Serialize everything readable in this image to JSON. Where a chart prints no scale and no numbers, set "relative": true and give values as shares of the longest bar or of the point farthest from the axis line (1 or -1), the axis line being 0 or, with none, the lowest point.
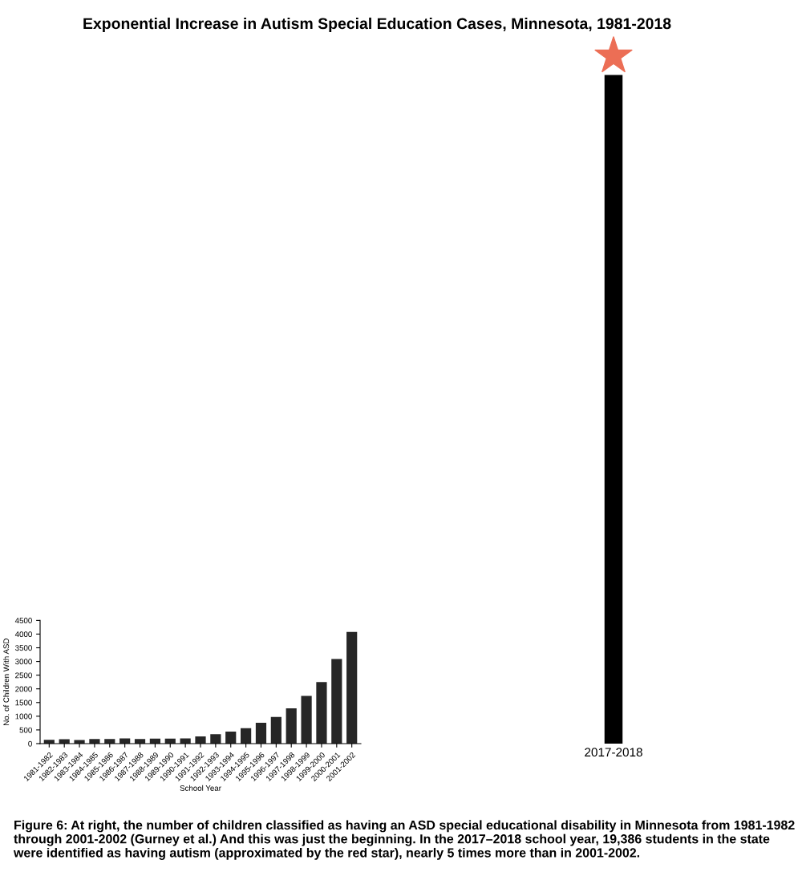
{
  "chart_data": [
    {
      "type": "bar",
      "title": "Exponential Increase in Autism Special Education Cases, Minnesota, 1981-2018",
      "xlabel": "School Year",
      "ylabel": "No. of Children With ASD",
      "categories": [
        "1981-1982",
        "1982-1983",
        "1983-1984",
        "1984-1985",
        "1985-1986",
        "1986-1987",
        "1987-1988",
        "1988-1989",
        "1989-1990",
        "1990-1991",
        "1991-1992",
        "1992-1993",
        "1993-1994",
        "1994-1995",
        "1995-1996",
        "1996-1997",
        "1997-1998",
        "1998-1999",
        "1999-2000",
        "2000-2001",
        "2001-2002"
      ],
      "values": [
        140,
        160,
        130,
        170,
        170,
        190,
        170,
        180,
        180,
        190,
        260,
        340,
        440,
        560,
        760,
        970,
        1290,
        1740,
        2250,
        3090,
        4080
      ],
      "color": "#262626",
      "ylim": [
        0,
        4500
      ],
      "yticks": [
        0,
        500,
        1000,
        1500,
        2000,
        2500,
        3000,
        3500,
        4000,
        4500
      ],
      "grid": false,
      "annotations": [
        "Figure 6: At right, the number of children classified as having an ASD special educational disability in Minnesota from 1981-1982 through 2001-2002 (Gurney et al.) And this was just the beginning. In the 2017–2018 school year, 19,386 students in the state were identified as having autism (approximated by the red star), nearly 5 times more than in 2001-2002."
      ]
    },
    {
      "type": "bar",
      "categories": [
        "2017-2018"
      ],
      "values": [
        1
      ],
      "relative": true,
      "color": "#000000"
    }
  ]
}
